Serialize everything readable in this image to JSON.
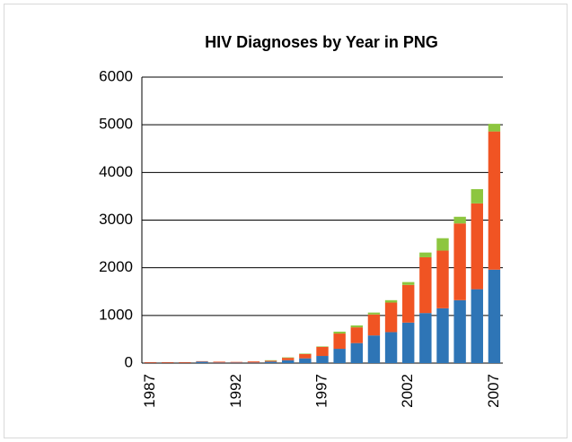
{
  "chart_data": {
    "type": "stacked_bar",
    "title": "HIV Diagnoses by Year in PNG",
    "categories": [
      "1987",
      null,
      null,
      null,
      null,
      "1992",
      null,
      null,
      null,
      null,
      "1997",
      null,
      null,
      null,
      null,
      "2002",
      null,
      null,
      null,
      null,
      "2007"
    ],
    "series": [
      {
        "color": "#2e75b6",
        "values": [
          5,
          5,
          5,
          30,
          10,
          10,
          10,
          30,
          60,
          100,
          150,
          300,
          420,
          580,
          650,
          850,
          1050,
          1150,
          1320,
          1550,
          1960
        ]
      },
      {
        "color": "#f05423",
        "values": [
          15,
          15,
          15,
          10,
          20,
          15,
          25,
          20,
          50,
          90,
          190,
          320,
          330,
          440,
          620,
          790,
          1170,
          1210,
          1610,
          1800,
          2900
        ]
      },
      {
        "color": "#8dc63f",
        "values": [
          0,
          0,
          0,
          0,
          0,
          0,
          0,
          10,
          10,
          10,
          10,
          40,
          40,
          40,
          50,
          60,
          100,
          260,
          140,
          300,
          160
        ]
      }
    ],
    "ylim": [
      0,
      6000
    ],
    "yticks": [
      0,
      1000,
      2000,
      3000,
      4000,
      5000,
      6000
    ],
    "grid": true
  }
}
